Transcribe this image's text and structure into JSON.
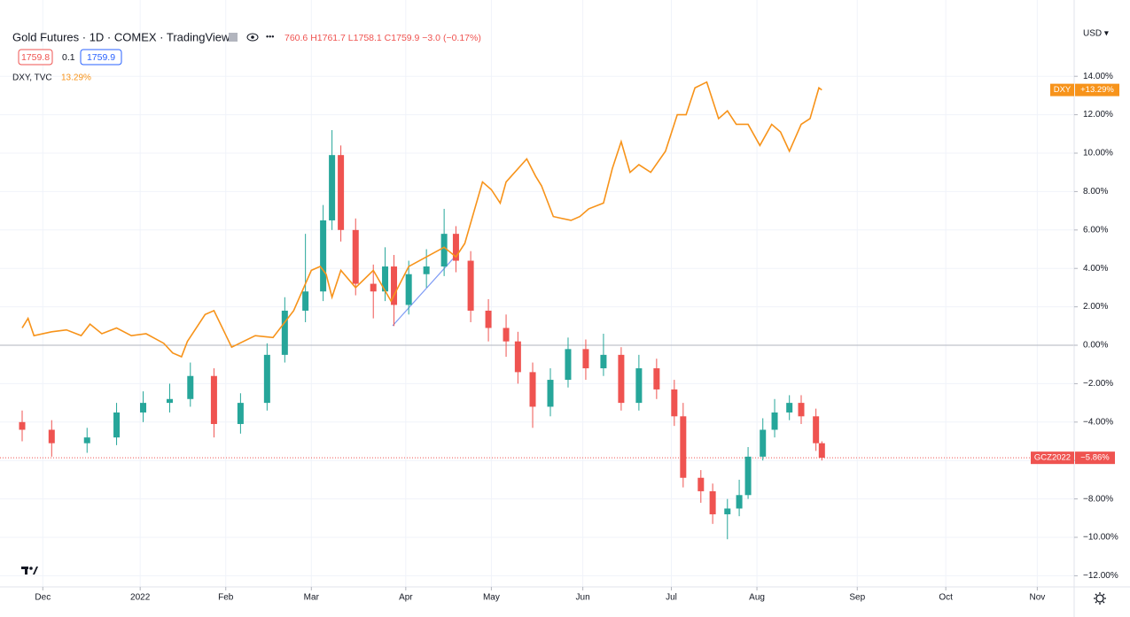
{
  "chart_data": {
    "type": "candlestick",
    "title": "Gold Futures · 1D · COMEX · TradingView",
    "ohlc_text": "760.6 H1761.7 L1758.1 C1759.9 −3.0 (−0.17%)",
    "bid": "1759.8",
    "spread": "0.1",
    "ask": "1759.9",
    "currency": "USD ▾",
    "xlim": [
      0,
      354.4
    ],
    "xticks": [
      {
        "value": 7,
        "label": "Dec"
      },
      {
        "value": 40,
        "label": "2022"
      },
      {
        "value": 69,
        "label": "Feb"
      },
      {
        "value": 98,
        "label": "Mar"
      },
      {
        "value": 130,
        "label": "Apr"
      },
      {
        "value": 159,
        "label": "May"
      },
      {
        "value": 190,
        "label": "Jun"
      },
      {
        "value": 220,
        "label": "Jul"
      },
      {
        "value": 249,
        "label": "Aug"
      },
      {
        "value": 283,
        "label": "Sep"
      },
      {
        "value": 313,
        "label": "Oct"
      },
      {
        "value": 344,
        "label": "Nov"
      }
    ],
    "ylim": [
      -12.58,
      16.59
    ],
    "yticks": [
      {
        "value": -12,
        "label": "−12.00%"
      },
      {
        "value": -10,
        "label": "−10.00%"
      },
      {
        "value": -8,
        "label": "−8.00%"
      },
      {
        "value": -6,
        "label": "−6.00%"
      },
      {
        "value": -4,
        "label": "−4.00%"
      },
      {
        "value": -2,
        "label": "−2.00%"
      },
      {
        "value": 0,
        "label": "0.00%"
      },
      {
        "value": 2,
        "label": "2.00%"
      },
      {
        "value": 4,
        "label": "4.00%"
      },
      {
        "value": 6,
        "label": "6.00%"
      },
      {
        "value": 8,
        "label": "8.00%"
      },
      {
        "value": 10,
        "label": "10.00%"
      },
      {
        "value": 12,
        "label": "12.00%"
      },
      {
        "value": 14,
        "label": "14.00%"
      }
    ],
    "grid": true,
    "gold": {
      "name": "GCZ2022",
      "up_color": "#26a69a",
      "down_color": "#ef5350",
      "last_label": "−5.86%",
      "x": [
        0,
        10,
        22,
        32,
        41,
        50,
        57,
        65,
        74,
        83,
        89,
        96,
        102,
        105,
        108,
        113,
        119,
        123,
        126,
        131,
        137,
        143,
        147,
        152,
        158,
        164,
        168,
        173,
        179,
        185,
        191,
        197,
        203,
        209,
        215,
        221,
        224,
        230,
        234,
        239,
        243,
        246,
        251,
        255,
        260,
        264,
        269,
        271
      ],
      "open": [
        -4.0,
        -4.4,
        -5.1,
        -4.8,
        -3.5,
        -3.0,
        -2.8,
        -1.6,
        -4.1,
        -3.0,
        -0.5,
        1.8,
        2.8,
        6.5,
        9.9,
        6.0,
        3.2,
        2.8,
        4.1,
        2.1,
        3.7,
        4.1,
        5.8,
        4.4,
        1.8,
        0.9,
        0.2,
        -1.4,
        -3.2,
        -1.8,
        -0.2,
        -1.2,
        -0.5,
        -3.0,
        -1.2,
        -2.3,
        -3.7,
        -6.9,
        -7.6,
        -8.8,
        -8.5,
        -7.8,
        -5.8,
        -4.4,
        -3.5,
        -3.0,
        -3.7,
        -5.1
      ],
      "high": [
        -3.4,
        -3.9,
        -4.3,
        -3.0,
        -2.4,
        -2.0,
        -0.9,
        -1.2,
        -2.5,
        0.1,
        2.5,
        5.8,
        7.3,
        11.2,
        10.4,
        6.6,
        4.2,
        5.1,
        4.7,
        4.4,
        5.0,
        7.1,
        6.2,
        4.9,
        2.4,
        1.6,
        0.7,
        -0.9,
        -1.2,
        0.4,
        0.3,
        0.6,
        -0.1,
        -0.5,
        -0.7,
        -1.8,
        -3.0,
        -6.5,
        -7.2,
        -8.0,
        -7.0,
        -5.3,
        -3.8,
        -2.8,
        -2.6,
        -2.6,
        -3.3,
        -5.0
      ],
      "low": [
        -5.0,
        -5.8,
        -5.6,
        -5.2,
        -4.0,
        -3.5,
        -3.2,
        -4.8,
        -4.6,
        -3.4,
        -0.9,
        1.2,
        2.3,
        6.0,
        5.4,
        2.6,
        1.4,
        2.3,
        1.0,
        1.6,
        3.0,
        3.6,
        3.8,
        1.2,
        0.2,
        -0.6,
        -2.0,
        -4.3,
        -3.7,
        -2.2,
        -1.8,
        -1.6,
        -3.4,
        -3.4,
        -2.8,
        -4.2,
        -7.4,
        -8.2,
        -9.3,
        -10.1,
        -8.9,
        -8.0,
        -6.0,
        -4.8,
        -3.9,
        -4.1,
        -5.5,
        -6.0
      ],
      "close": [
        -4.4,
        -5.1,
        -4.8,
        -3.5,
        -3.0,
        -2.8,
        -1.6,
        -4.1,
        -3.0,
        -0.5,
        1.8,
        2.8,
        6.5,
        9.9,
        6.0,
        3.2,
        2.8,
        4.1,
        2.1,
        3.7,
        4.1,
        5.8,
        4.4,
        1.8,
        0.9,
        0.2,
        -1.4,
        -3.2,
        -1.8,
        -0.2,
        -1.2,
        -0.5,
        -3.0,
        -1.2,
        -2.3,
        -3.7,
        -6.9,
        -7.6,
        -8.8,
        -8.5,
        -7.8,
        -5.8,
        -4.4,
        -3.5,
        -3.0,
        -3.7,
        -5.1,
        -5.86
      ]
    },
    "dxy": {
      "name": "DXY",
      "legend_label": "DXY, TVC",
      "legend_value": "13.29%",
      "last_label": "+13.29%",
      "color": "#f7931a",
      "x": [
        0,
        2,
        4,
        10,
        15,
        20,
        23,
        27,
        32,
        37,
        42,
        48,
        51,
        54,
        56,
        62,
        65,
        71,
        79,
        85,
        92,
        98,
        101,
        103,
        105,
        108,
        113,
        119,
        125,
        131,
        137,
        143,
        147,
        150,
        156,
        159,
        162,
        164,
        171,
        174,
        176,
        180,
        186,
        189,
        192,
        197,
        200,
        203,
        206,
        209,
        213,
        218,
        222,
        225,
        228,
        232,
        236,
        239,
        242,
        246,
        250,
        254,
        257,
        260,
        264,
        267,
        270,
        271
      ],
      "values": [
        0.9,
        1.4,
        0.5,
        0.7,
        0.8,
        0.5,
        1.1,
        0.6,
        0.9,
        0.5,
        0.6,
        0.1,
        -0.4,
        -0.6,
        0.2,
        1.6,
        1.8,
        -0.1,
        0.5,
        0.4,
        1.8,
        3.9,
        4.1,
        3.7,
        2.5,
        3.9,
        3.0,
        3.9,
        2.3,
        4.1,
        4.6,
        5.1,
        4.6,
        5.3,
        8.5,
        8.1,
        7.4,
        8.5,
        9.7,
        8.8,
        8.3,
        6.7,
        6.5,
        6.7,
        7.1,
        7.4,
        9.2,
        10.6,
        9.0,
        9.4,
        9.0,
        10.1,
        12.0,
        12.0,
        13.4,
        13.7,
        11.8,
        12.2,
        11.5,
        11.5,
        10.4,
        11.5,
        11.1,
        10.1,
        11.5,
        11.8,
        13.4,
        13.29
      ]
    }
  }
}
